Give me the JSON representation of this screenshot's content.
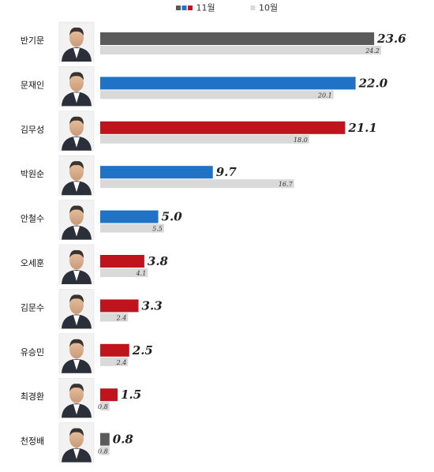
{
  "chart_data": {
    "type": "bar",
    "orientation": "horizontal",
    "legend": {
      "position": "top-center",
      "items": [
        {
          "label": "11월",
          "swatches": [
            "#5a5a5a",
            "#1f72c4",
            "#c0141c"
          ]
        },
        {
          "label": "10월",
          "swatches": [
            "#d9d9d9"
          ]
        }
      ]
    },
    "categories": [
      "반기문",
      "문재인",
      "김무성",
      "박원순",
      "안철수",
      "오세훈",
      "김문수",
      "유승민",
      "최경환",
      "천정배"
    ],
    "series": [
      {
        "name": "11월",
        "values": [
          23.6,
          22.0,
          21.1,
          9.7,
          5.0,
          3.8,
          3.3,
          2.5,
          1.5,
          0.8
        ],
        "labels": [
          "23.6",
          "22.0",
          "21.1",
          "9.7",
          "5.0",
          "3.8",
          "3.3",
          "2.5",
          "1.5",
          "0.8"
        ],
        "colors": [
          "#5a5a5a",
          "#1f72c4",
          "#c0141c",
          "#1f72c4",
          "#1f72c4",
          "#c0141c",
          "#c0141c",
          "#c0141c",
          "#c0141c",
          "#5a5a5a"
        ]
      },
      {
        "name": "10월",
        "values": [
          24.2,
          20.1,
          18.0,
          16.7,
          5.5,
          4.1,
          2.4,
          2.4,
          0.8,
          0.8
        ],
        "labels": [
          "24.2",
          "20.1",
          "18.0",
          "16.7",
          "5.5",
          "4.1",
          "2.4",
          "2.4",
          "0.8",
          "0.8"
        ],
        "color": "#d9d9d9"
      }
    ],
    "xlim": [
      0,
      24.2
    ],
    "grid": false,
    "title": "",
    "xlabel": "",
    "ylabel": ""
  }
}
